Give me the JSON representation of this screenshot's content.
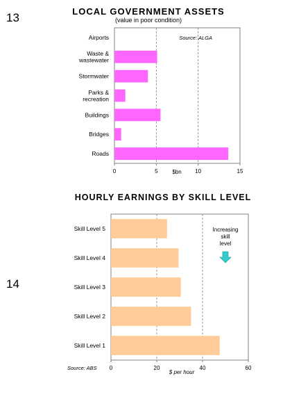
{
  "slide_numbers": [
    "13",
    "14"
  ],
  "chart_data": [
    {
      "type": "bar",
      "orientation": "horizontal",
      "title": "LOCAL GOVERNMENT ASSETS",
      "subtitle": "(value in poor condition)",
      "xlabel": "$bn",
      "source": "Source: ALGA",
      "categories": [
        "Airports",
        "Waste &\nwastewater",
        "Stormwater",
        "Parks &\nrecreation",
        "Buildings",
        "Bridges",
        "Roads"
      ],
      "values": [
        0,
        5.1,
        4.0,
        1.3,
        5.5,
        0.8,
        13.6
      ],
      "xlim": [
        0,
        15
      ],
      "xticks": [
        0,
        5,
        10,
        15
      ],
      "gridlines": [
        5,
        10
      ],
      "grid": "dashed vertical",
      "bar_color": "#ff66ff"
    },
    {
      "type": "bar",
      "orientation": "horizontal",
      "title": "HOURLY EARNINGS BY SKILL LEVEL",
      "xlabel": "$ per hour",
      "source": "Source: ABS",
      "annotation": "Increasing\nskill\nlevel",
      "annotation_icon": "down-arrow-icon",
      "categories": [
        "Skill Level 5",
        "Skill Level 4",
        "Skill Level 3",
        "Skill Level 2",
        "Skill Level 1"
      ],
      "values": [
        24.5,
        29.5,
        30.5,
        35,
        47.5
      ],
      "xlim": [
        0,
        60
      ],
      "xticks": [
        0,
        20,
        40,
        60
      ],
      "gridlines": [
        20,
        40
      ],
      "grid": "dashed vertical",
      "bar_color": "#ffcc99",
      "arrow_color": "#33cccc"
    }
  ]
}
